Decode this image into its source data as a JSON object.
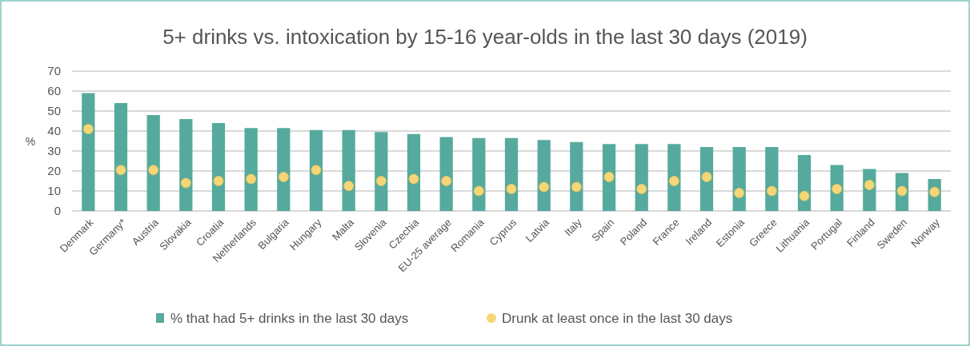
{
  "chart_data": {
    "type": "bar",
    "title": "5+ drinks vs. intoxication by 15-16 year-olds in the last 30 days (2019)",
    "ylabel": "%",
    "categories": [
      "Denmark",
      "Germany*",
      "Austria",
      "Slovakia",
      "Croatia",
      "Netherlands",
      "Bulgaria",
      "Hungary",
      "Malta",
      "Slovenia",
      "Czechia",
      "EU-25 average",
      "Romania",
      "Cyprus",
      "Latvia",
      "Italy",
      "Spain",
      "Poland",
      "France",
      "Ireland",
      "Estonia",
      "Greece",
      "Lithuania",
      "Portugal",
      "Finland",
      "Sweden",
      "Norway"
    ],
    "series": [
      {
        "name": "% that had 5+ drinks in the last 30 days",
        "color": "#55aa9d",
        "values": [
          59,
          54,
          48,
          46,
          44,
          41.5,
          41.5,
          40.5,
          40.5,
          39.5,
          38.5,
          37,
          36.5,
          36.5,
          35.5,
          34.5,
          33.5,
          33.5,
          33.5,
          32,
          32,
          32,
          28,
          23,
          21,
          19,
          16
        ]
      },
      {
        "name": "Drunk at least once in the last 30 days",
        "type": "scatter",
        "color": "#f5d77a",
        "values": [
          41,
          20.5,
          20.5,
          14,
          15,
          16,
          17,
          20.5,
          12.5,
          15,
          16,
          15,
          10,
          11,
          12,
          12,
          17,
          11,
          15,
          17,
          9,
          10,
          7.5,
          11,
          13,
          10,
          9.5
        ]
      }
    ],
    "ylim": [
      0,
      70
    ],
    "yticks": [
      0,
      10,
      20,
      30,
      40,
      50,
      60,
      70
    ],
    "grid": "y",
    "legend": "bottom",
    "marker": "circle"
  }
}
